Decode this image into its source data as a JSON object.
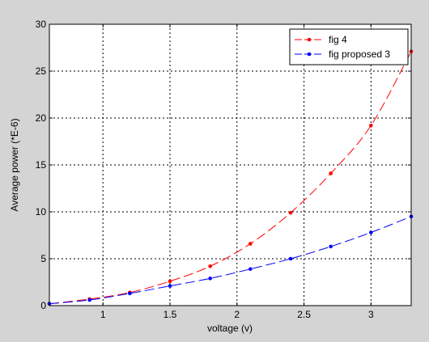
{
  "chart_data": {
    "type": "line",
    "title": "",
    "xlabel": "voltage (v)",
    "ylabel": "Average power (*E-6)",
    "xlim": [
      0.6,
      3.3
    ],
    "ylim": [
      0,
      30
    ],
    "x_ticks": [
      1,
      1.5,
      2,
      2.5,
      3
    ],
    "y_ticks": [
      0,
      5,
      10,
      15,
      20,
      25,
      30
    ],
    "x_tick_labels": [
      "1",
      "1.5",
      "2",
      "2.5",
      "3"
    ],
    "y_tick_labels": [
      "0",
      "5",
      "10",
      "15",
      "20",
      "25",
      "30"
    ],
    "grid": true,
    "legend_position": "top-right",
    "x": [
      0.6,
      0.9,
      1.2,
      1.5,
      1.8,
      2.1,
      2.4,
      2.7,
      3.0,
      3.3
    ],
    "series": [
      {
        "name": "fig 4",
        "color": "#ff0000",
        "values": [
          0.2,
          0.7,
          1.4,
          2.6,
          4.2,
          6.6,
          9.9,
          14.1,
          19.2,
          27.1
        ]
      },
      {
        "name": "fig proposed 3",
        "color": "#0000ff",
        "values": [
          0.2,
          0.6,
          1.3,
          2.1,
          2.9,
          3.9,
          5.0,
          6.3,
          7.8,
          9.5
        ]
      }
    ]
  }
}
